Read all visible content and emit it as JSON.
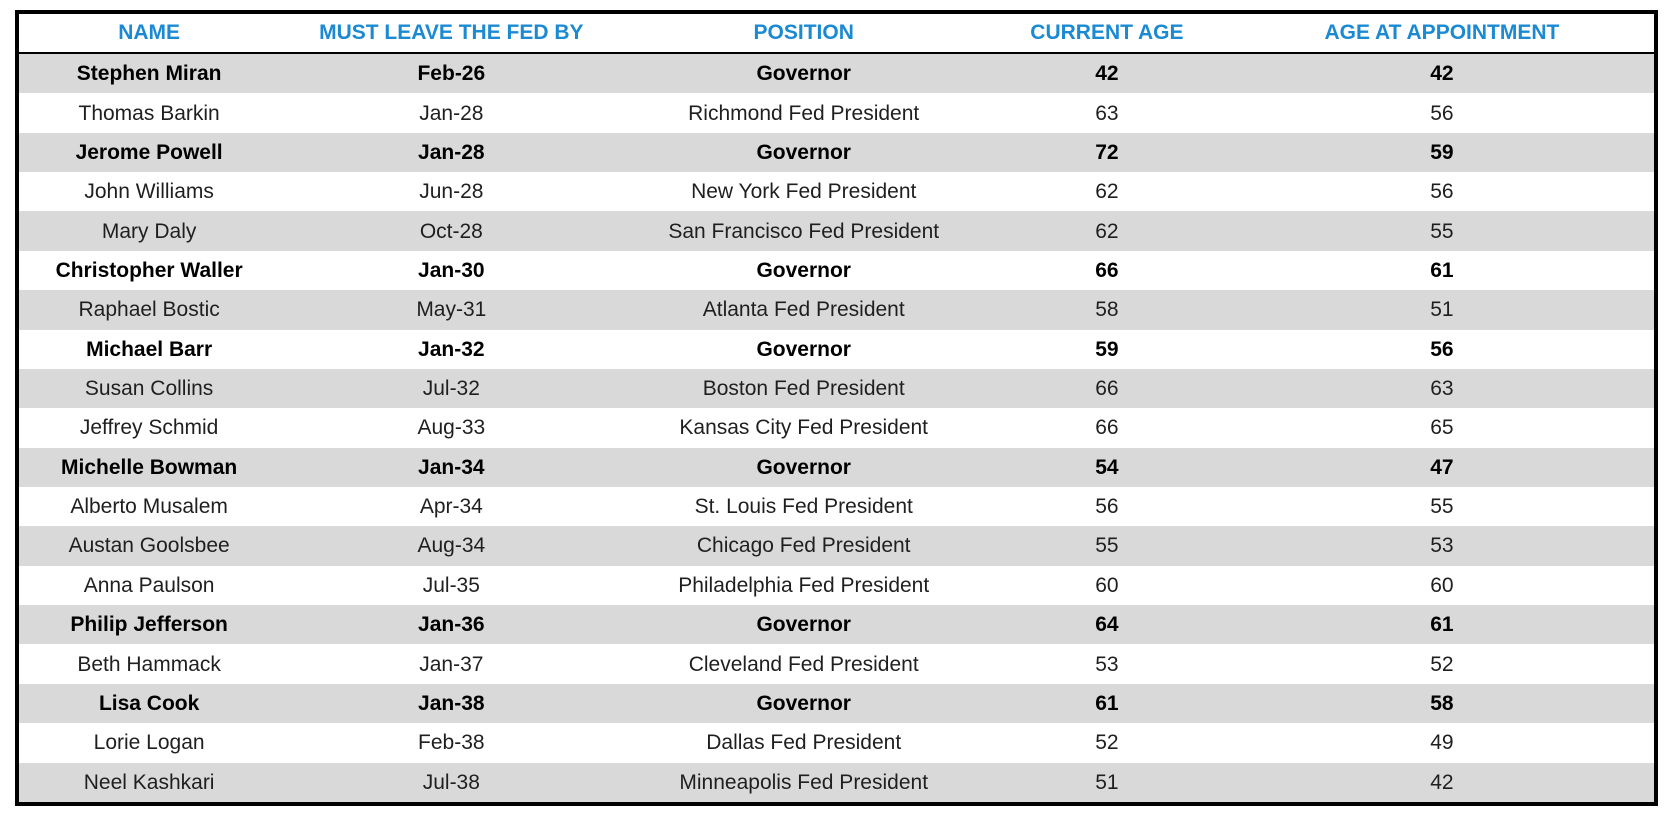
{
  "chart_data": {
    "type": "table",
    "columns": [
      "NAME",
      "MUST LEAVE THE FED BY",
      "POSITION",
      "CURRENT AGE",
      "AGE AT APPOINTMENT"
    ],
    "column_keys": [
      "name",
      "leave-by",
      "position",
      "current-age",
      "appointment-age"
    ],
    "rows": [
      {
        "cells": [
          "Stephen Miran",
          "Feb-26",
          "Governor",
          "42",
          "42"
        ],
        "bold": true
      },
      {
        "cells": [
          "Thomas Barkin",
          "Jan-28",
          "Richmond Fed President",
          "63",
          "56"
        ],
        "bold": false
      },
      {
        "cells": [
          "Jerome Powell",
          "Jan-28",
          "Governor",
          "72",
          "59"
        ],
        "bold": true
      },
      {
        "cells": [
          "John Williams",
          "Jun-28",
          "New York Fed President",
          "62",
          "56"
        ],
        "bold": false
      },
      {
        "cells": [
          "Mary Daly",
          "Oct-28",
          "San Francisco Fed President",
          "62",
          "55"
        ],
        "bold": false
      },
      {
        "cells": [
          "Christopher Waller",
          "Jan-30",
          "Governor",
          "66",
          "61"
        ],
        "bold": true
      },
      {
        "cells": [
          "Raphael Bostic",
          "May-31",
          "Atlanta Fed President",
          "58",
          "51"
        ],
        "bold": false
      },
      {
        "cells": [
          "Michael Barr",
          "Jan-32",
          "Governor",
          "59",
          "56"
        ],
        "bold": true
      },
      {
        "cells": [
          "Susan Collins",
          "Jul-32",
          "Boston Fed President",
          "66",
          "63"
        ],
        "bold": false
      },
      {
        "cells": [
          "Jeffrey Schmid",
          "Aug-33",
          "Kansas City Fed President",
          "66",
          "65"
        ],
        "bold": false
      },
      {
        "cells": [
          "Michelle Bowman",
          "Jan-34",
          "Governor",
          "54",
          "47"
        ],
        "bold": true
      },
      {
        "cells": [
          "Alberto Musalem",
          "Apr-34",
          "St. Louis Fed President",
          "56",
          "55"
        ],
        "bold": false
      },
      {
        "cells": [
          "Austan Goolsbee",
          "Aug-34",
          "Chicago Fed President",
          "55",
          "53"
        ],
        "bold": false
      },
      {
        "cells": [
          "Anna Paulson",
          "Jul-35",
          "Philadelphia Fed President",
          "60",
          "60"
        ],
        "bold": false
      },
      {
        "cells": [
          "Philip Jefferson",
          "Jan-36",
          "Governor",
          "64",
          "61"
        ],
        "bold": true
      },
      {
        "cells": [
          "Beth Hammack",
          "Jan-37",
          "Cleveland Fed President",
          "53",
          "52"
        ],
        "bold": false
      },
      {
        "cells": [
          "Lisa Cook",
          "Jan-38",
          "Governor",
          "61",
          "58"
        ],
        "bold": true
      },
      {
        "cells": [
          "Lorie Logan",
          "Feb-38",
          "Dallas Fed President",
          "52",
          "49"
        ],
        "bold": false
      },
      {
        "cells": [
          "Neel Kashkari",
          "Jul-38",
          "Minneapolis Fed President",
          "51",
          "42"
        ],
        "bold": false
      }
    ]
  },
  "colors": {
    "header_text": "#1b8ad3",
    "alt_row_bg": "#d9d9d9",
    "border": "#000000",
    "body_text": "#1f1f1f"
  }
}
